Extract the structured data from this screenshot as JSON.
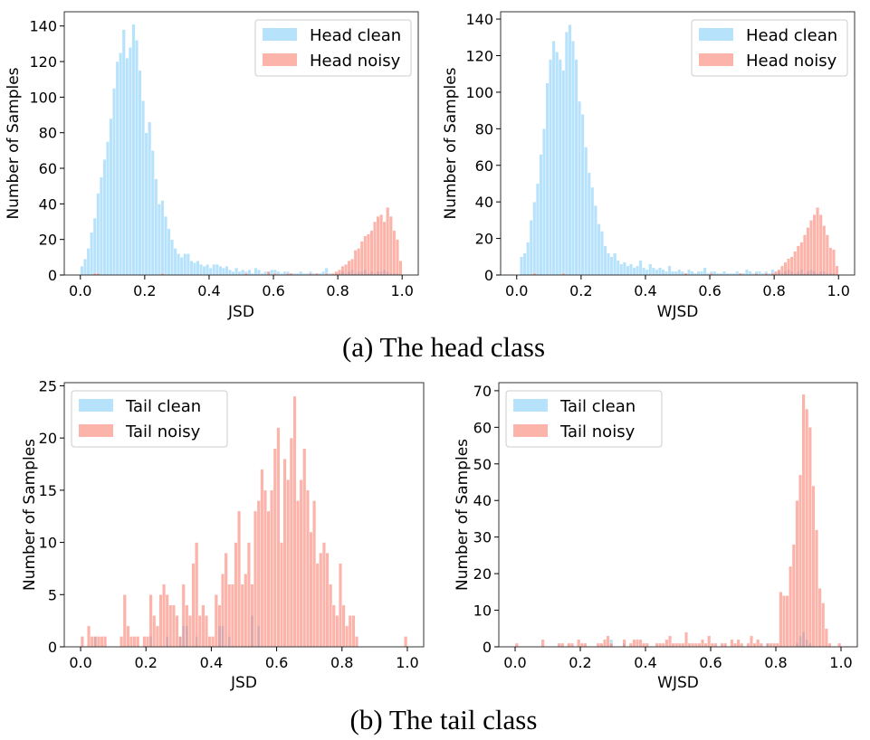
{
  "captions": [
    "(a) The head class",
    "(b) The tail class"
  ],
  "colors": {
    "clean": "#87CEFA",
    "noisy": "#FA8072"
  },
  "chart_data": [
    {
      "type": "bar",
      "subtype": "histogram",
      "bin_width": 0.01,
      "bin_start": 0.0,
      "xlabel": "JSD",
      "ylabel": "Number of Samples",
      "xlim": [
        -0.05,
        1.05
      ],
      "ylim": [
        0,
        148
      ],
      "xticks": [
        "0.0",
        "0.2",
        "0.4",
        "0.6",
        "0.8",
        "1.0"
      ],
      "xtick_values": [
        0,
        0.2,
        0.4,
        0.6,
        0.8,
        1.0
      ],
      "yticks": [
        "0",
        "20",
        "40",
        "60",
        "80",
        "100",
        "120",
        "140"
      ],
      "ytick_values": [
        0,
        20,
        40,
        60,
        80,
        100,
        120,
        140
      ],
      "legend": "top-right",
      "grid": false,
      "series": [
        {
          "name": "Head clean",
          "color": "#87CEFA",
          "values": [
            5,
            9,
            15,
            24,
            32,
            46,
            55,
            65,
            75,
            88,
            105,
            120,
            125,
            138,
            122,
            128,
            141,
            132,
            115,
            98,
            80,
            86,
            70,
            54,
            40,
            42,
            33,
            26,
            20,
            15,
            12,
            10,
            12,
            12,
            8,
            7,
            8,
            6,
            5,
            6,
            4,
            6,
            6,
            5,
            4,
            5,
            3,
            2,
            4,
            2,
            3,
            2,
            3,
            1,
            4,
            3,
            1,
            2,
            2,
            3,
            3,
            2,
            1,
            2,
            2,
            1,
            1,
            1,
            2,
            1,
            1,
            2,
            1,
            1,
            1,
            2,
            4,
            1,
            0,
            1,
            1,
            2,
            1,
            2,
            3,
            1,
            2,
            2,
            3,
            1,
            2,
            1,
            2,
            2,
            3,
            2,
            1,
            1,
            1,
            0
          ]
        },
        {
          "name": "Head noisy",
          "color": "#FA8072",
          "values": [
            0,
            0,
            0,
            0,
            1,
            1,
            0,
            0,
            0,
            0,
            0,
            0,
            0,
            0,
            0,
            0,
            0,
            0,
            0,
            0,
            0,
            0,
            0,
            0,
            0,
            1,
            0,
            0,
            0,
            0,
            0,
            0,
            0,
            0,
            0,
            0,
            0,
            0,
            0,
            0,
            0,
            0,
            0,
            0,
            0,
            0,
            0,
            0,
            0,
            0,
            0,
            1,
            0,
            0,
            0,
            0,
            0,
            0,
            2,
            0,
            1,
            0,
            0,
            0,
            1,
            1,
            0,
            0,
            0,
            0,
            0,
            1,
            0,
            1,
            0,
            0,
            1,
            0,
            1,
            2,
            3,
            5,
            6,
            8,
            9,
            14,
            15,
            19,
            22,
            23,
            25,
            30,
            33,
            34,
            30,
            38,
            33,
            25,
            20,
            8
          ]
        }
      ]
    },
    {
      "type": "bar",
      "subtype": "histogram",
      "bin_width": 0.01,
      "bin_start": 0.0,
      "xlabel": "WJSD",
      "ylabel": "Number of Samples",
      "xlim": [
        -0.05,
        1.05
      ],
      "ylim": [
        0,
        144
      ],
      "xticks": [
        "0.0",
        "0.2",
        "0.4",
        "0.6",
        "0.8",
        "1.0"
      ],
      "xtick_values": [
        0,
        0.2,
        0.4,
        0.6,
        0.8,
        1.0
      ],
      "yticks": [
        "0",
        "20",
        "40",
        "60",
        "80",
        "100",
        "120",
        "140"
      ],
      "ytick_values": [
        0,
        20,
        40,
        60,
        80,
        100,
        120,
        140
      ],
      "legend": "top-right",
      "grid": false,
      "series": [
        {
          "name": "Head clean",
          "color": "#87CEFA",
          "values": [
            0,
            10,
            12,
            18,
            30,
            40,
            50,
            66,
            80,
            105,
            118,
            128,
            122,
            118,
            112,
            133,
            137,
            128,
            118,
            95,
            88,
            70,
            56,
            48,
            38,
            28,
            24,
            16,
            12,
            10,
            12,
            8,
            6,
            7,
            5,
            6,
            4,
            5,
            8,
            4,
            3,
            6,
            4,
            3,
            4,
            3,
            2,
            5,
            2,
            2,
            3,
            2,
            1,
            3,
            2,
            1,
            2,
            2,
            4,
            1,
            2,
            2,
            1,
            1,
            2,
            1,
            1,
            1,
            2,
            1,
            1,
            3,
            2,
            1,
            2,
            2,
            1,
            2,
            1,
            3,
            1,
            2,
            1,
            2,
            3,
            2,
            1,
            2,
            3,
            1,
            2,
            3,
            2,
            1,
            2,
            2,
            1,
            1,
            1,
            0
          ]
        },
        {
          "name": "Head noisy",
          "color": "#FA8072",
          "values": [
            0,
            0,
            0,
            0,
            0,
            1,
            0,
            0,
            0,
            0,
            0,
            0,
            0,
            0,
            1,
            0,
            0,
            0,
            0,
            0,
            0,
            0,
            0,
            0,
            0,
            0,
            0,
            0,
            0,
            0,
            0,
            0,
            0,
            0,
            0,
            0,
            0,
            0,
            0,
            0,
            0,
            0,
            0,
            0,
            0,
            0,
            0,
            0,
            0,
            0,
            0,
            0,
            1,
            0,
            0,
            0,
            0,
            0,
            0,
            0,
            1,
            0,
            0,
            0,
            0,
            0,
            0,
            0,
            0,
            1,
            0,
            0,
            0,
            0,
            1,
            0,
            0,
            1,
            0,
            1,
            2,
            3,
            5,
            7,
            9,
            10,
            13,
            16,
            18,
            22,
            26,
            30,
            33,
            37,
            33,
            27,
            22,
            15,
            14,
            5
          ]
        }
      ]
    },
    {
      "type": "bar",
      "subtype": "histogram",
      "bin_width": 0.01,
      "bin_start": 0.0,
      "xlabel": "JSD",
      "ylabel": "Number of Samples",
      "xlim": [
        -0.05,
        1.05
      ],
      "ylim": [
        0,
        25.3
      ],
      "xticks": [
        "0.0",
        "0.2",
        "0.4",
        "0.6",
        "0.8",
        "1.0"
      ],
      "xtick_values": [
        0,
        0.2,
        0.4,
        0.6,
        0.8,
        1.0
      ],
      "yticks": [
        "0",
        "5",
        "10",
        "15",
        "20",
        "25"
      ],
      "ytick_values": [
        0,
        5,
        10,
        15,
        20,
        25
      ],
      "legend": "top-left",
      "grid": false,
      "series": [
        {
          "name": "Tail clean",
          "color": "#87CEFA",
          "values": [
            0,
            0,
            0,
            0,
            1,
            0,
            0,
            0,
            0,
            0,
            0,
            0,
            0,
            0,
            0,
            0,
            0,
            0,
            0,
            0,
            0,
            1,
            0,
            0,
            0,
            0,
            1,
            0,
            0,
            0,
            1,
            2,
            2,
            0,
            0,
            1,
            0,
            0,
            0,
            0,
            0,
            0,
            2,
            2,
            0,
            1,
            0,
            0,
            0,
            0,
            0,
            0,
            3,
            0,
            2,
            0,
            0,
            0,
            0,
            0,
            0,
            0,
            0,
            0,
            0,
            0,
            0,
            0,
            0,
            0,
            0,
            0,
            0,
            0,
            0,
            0,
            0,
            0,
            0,
            0,
            0,
            0,
            0,
            0,
            0,
            0,
            0,
            0,
            0,
            0,
            0,
            0,
            0,
            0,
            0,
            0,
            0,
            0,
            0,
            0
          ]
        },
        {
          "name": "Tail noisy",
          "color": "#FA8072",
          "values": [
            1,
            0,
            2,
            1,
            1,
            1,
            1,
            1,
            0,
            0,
            0,
            0,
            1,
            5,
            2,
            1,
            1,
            1,
            0,
            1,
            1,
            5,
            3,
            2,
            5,
            6,
            5,
            4,
            4,
            3,
            1,
            6,
            4,
            3,
            8,
            10,
            3,
            4,
            3,
            1,
            1,
            5,
            4,
            7,
            9,
            6,
            6,
            10,
            13,
            6,
            7,
            10,
            6,
            13,
            14,
            17,
            15,
            13,
            15,
            19,
            21,
            10,
            18,
            16,
            20,
            24,
            14,
            16,
            19,
            15,
            11,
            14,
            8,
            9,
            10,
            9,
            6,
            4,
            3,
            8,
            4,
            2,
            3,
            3,
            1,
            0,
            0,
            0,
            0,
            0,
            0,
            0,
            0,
            0,
            0,
            0,
            0,
            0,
            0,
            1
          ]
        }
      ]
    },
    {
      "type": "bar",
      "subtype": "histogram",
      "bin_width": 0.01,
      "bin_start": 0.0,
      "xlabel": "WJSD",
      "ylabel": "Number of Samples",
      "xlim": [
        -0.05,
        1.05
      ],
      "ylim": [
        0,
        72.2
      ],
      "xticks": [
        "0.0",
        "0.2",
        "0.4",
        "0.6",
        "0.8",
        "1.0"
      ],
      "xtick_values": [
        0,
        0.2,
        0.4,
        0.6,
        0.8,
        1.0
      ],
      "yticks": [
        "0",
        "10",
        "20",
        "30",
        "40",
        "50",
        "60",
        "70"
      ],
      "ytick_values": [
        0,
        10,
        20,
        30,
        40,
        50,
        60,
        70
      ],
      "legend": "top-left",
      "grid": false,
      "series": [
        {
          "name": "Tail clean",
          "color": "#87CEFA",
          "values": [
            0,
            0,
            0,
            0,
            0,
            0,
            0,
            0,
            0,
            0,
            0,
            0,
            0,
            0,
            0,
            0,
            0,
            0,
            0,
            0,
            0,
            0,
            0,
            0,
            0,
            0,
            0,
            0,
            0,
            2,
            0,
            0,
            0,
            1,
            0,
            0,
            0,
            0,
            0,
            0,
            0,
            0,
            0,
            0,
            0,
            0,
            0,
            0,
            0,
            0,
            0,
            0,
            0,
            0,
            0,
            0,
            0,
            0,
            0,
            0,
            0,
            0,
            0,
            0,
            0,
            0,
            0,
            0,
            0,
            0,
            0,
            0,
            0,
            0,
            0,
            0,
            0,
            1,
            0,
            0,
            0,
            0,
            0,
            0,
            0,
            0,
            1,
            3,
            4,
            2,
            1,
            0,
            0,
            0,
            0,
            0,
            0,
            0,
            0,
            0
          ]
        },
        {
          "name": "Tail noisy",
          "color": "#FA8072",
          "values": [
            1,
            0,
            0,
            0,
            0,
            0,
            0,
            0,
            2,
            0,
            0,
            0,
            0,
            1,
            1,
            0,
            1,
            1,
            0,
            2,
            1,
            1,
            0,
            0,
            0,
            1,
            1,
            2,
            3,
            1,
            0,
            0,
            0,
            2,
            0,
            1,
            2,
            2,
            2,
            1,
            1,
            0,
            0,
            1,
            1,
            1,
            2,
            3,
            1,
            1,
            1,
            1,
            4,
            1,
            1,
            1,
            1,
            2,
            1,
            3,
            1,
            1,
            0,
            1,
            1,
            0,
            2,
            1,
            2,
            1,
            0,
            1,
            3,
            1,
            2,
            1,
            0,
            1,
            1,
            1,
            1,
            15,
            14,
            14,
            22,
            28,
            40,
            47,
            69,
            65,
            60,
            44,
            32,
            16,
            12,
            5,
            1,
            0,
            0,
            1
          ]
        }
      ]
    }
  ]
}
